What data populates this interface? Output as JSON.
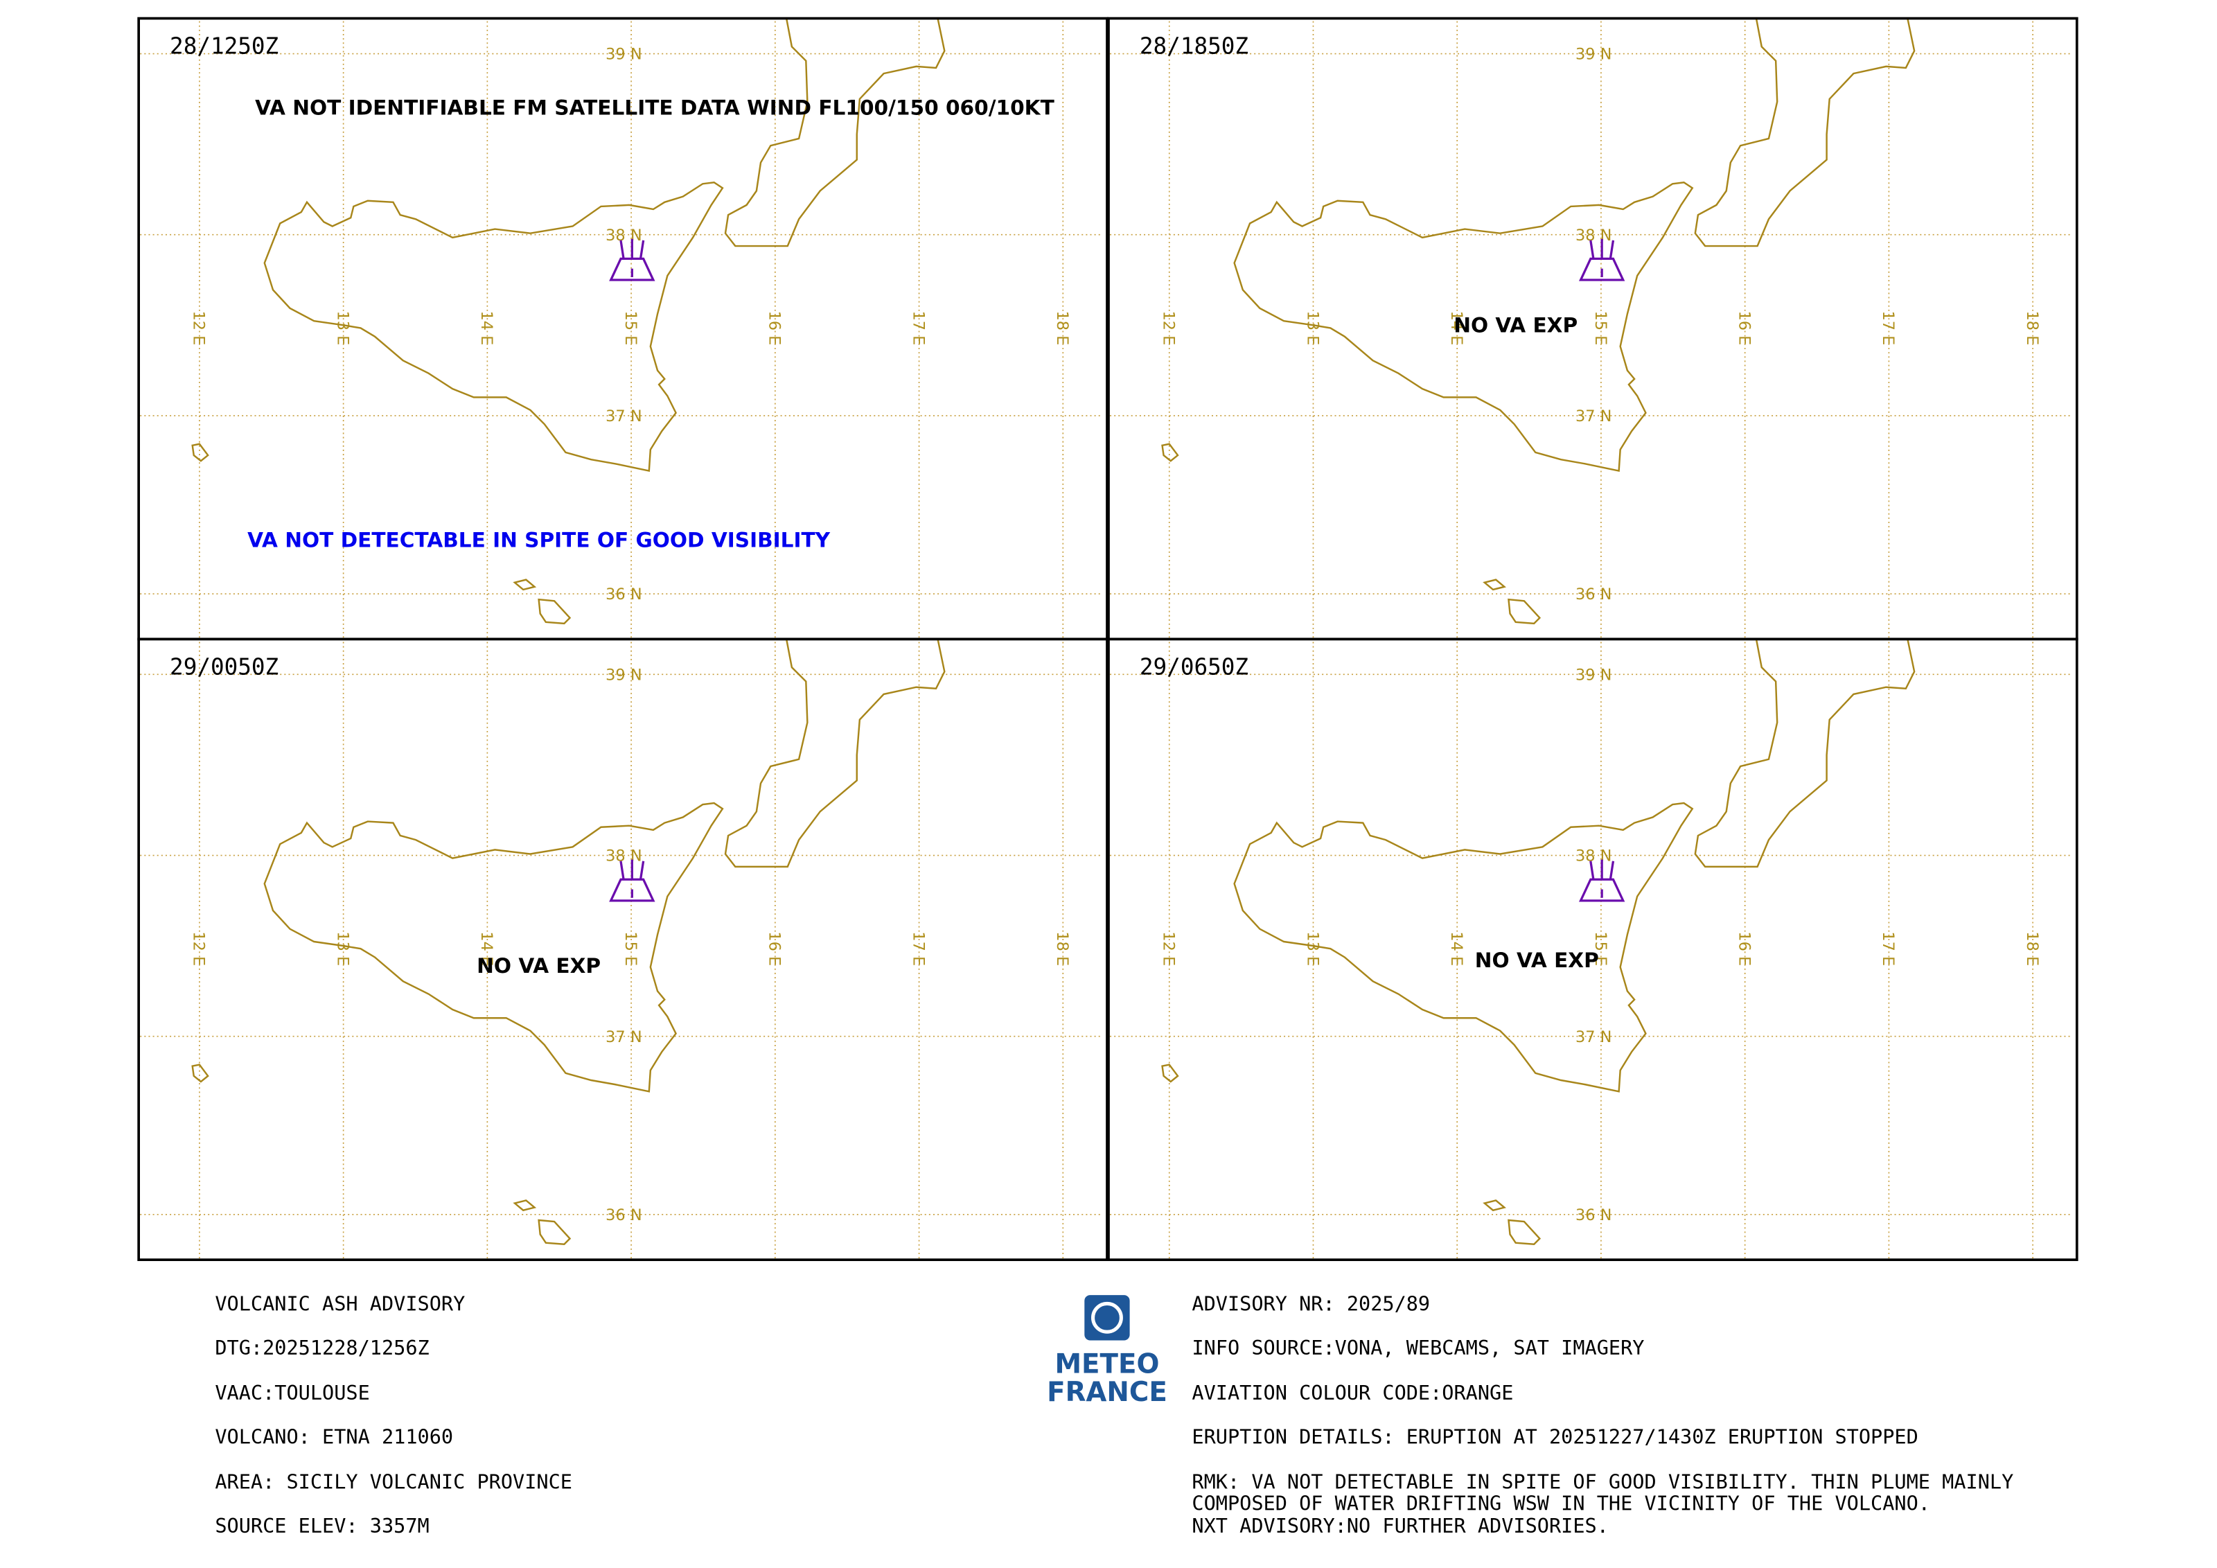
{
  "panels": [
    {
      "time": "28/1250Z",
      "annotations": [
        {
          "text": "VA NOT IDENTIFIABLE FM SATELLITE DATA WIND FL100/150 060/10KT",
          "color": "#000000"
        },
        {
          "text": "VA NOT DETECTABLE IN SPITE OF GOOD VISIBILITY",
          "color": "#0000ee"
        }
      ]
    },
    {
      "time": "28/1850Z",
      "annotations": [
        {
          "text": "NO VA EXP",
          "color": "#000000"
        }
      ]
    },
    {
      "time": "29/0050Z",
      "annotations": [
        {
          "text": "NO VA EXP",
          "color": "#000000"
        }
      ]
    },
    {
      "time": "29/0650Z",
      "annotations": [
        {
          "text": "NO VA EXP",
          "color": "#000000"
        }
      ]
    }
  ],
  "grid": {
    "lon_labels": [
      "12 E",
      "13 E",
      "14 E",
      "15 E",
      "16 E",
      "17 E",
      "18 E"
    ],
    "lat_labels": [
      "39 N",
      "38 N",
      "37 N",
      "36 N"
    ]
  },
  "footer": {
    "left": [
      "VOLCANIC ASH ADVISORY",
      "DTG:20251228/1256Z",
      "VAAC:TOULOUSE",
      "VOLCANO: ETNA 211060",
      "AREA: SICILY VOLCANIC PROVINCE",
      "SOURCE ELEV: 3357M"
    ],
    "right": [
      "ADVISORY NR: 2025/89",
      "INFO SOURCE:VONA, WEBCAMS, SAT IMAGERY",
      "AVIATION COLOUR CODE:ORANGE",
      "ERUPTION DETAILS: ERUPTION AT 20251227/1430Z ERUPTION STOPPED",
      "RMK: VA NOT DETECTABLE IN SPITE OF GOOD VISIBILITY.  THIN PLUME MAINLY",
      "COMPOSED OF WATER DRIFTING WSW  IN THE VICINITY OF THE VOLCANO.",
      "NXT ADVISORY:NO FURTHER ADVISORIES."
    ],
    "logo": {
      "line1": "METEO",
      "line2": "FRANCE"
    }
  }
}
